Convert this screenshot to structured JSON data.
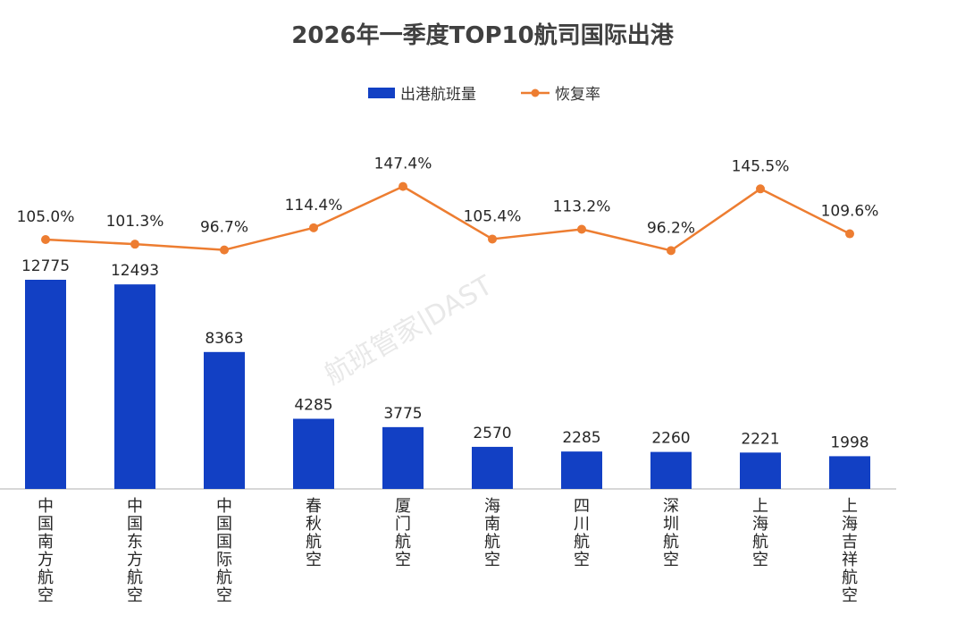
{
  "chart_data": {
    "type": "bar",
    "title": "2026年一季度TOP10航司国际出港",
    "categories": [
      "中国南方航空",
      "中国东方航空",
      "中国国际航空",
      "春秋航空",
      "厦门航空",
      "海南航空",
      "四川航空",
      "深圳航空",
      "上海航空",
      "上海吉祥航空"
    ],
    "series": [
      {
        "name": "出港航班量",
        "kind": "bar",
        "values": [
          12775,
          12493,
          8363,
          4285,
          3775,
          2570,
          2285,
          2260,
          2221,
          1998
        ]
      },
      {
        "name": "恢复率",
        "kind": "line",
        "values": [
          105.0,
          101.3,
          96.7,
          114.4,
          147.4,
          105.4,
          113.2,
          96.2,
          145.5,
          109.6
        ],
        "labels": [
          "105.0%",
          "101.3%",
          "96.7%",
          "114.4%",
          "147.4%",
          "105.4%",
          "113.2%",
          "96.2%",
          "145.5%",
          "109.6%"
        ]
      }
    ],
    "legend_position": "top-center",
    "grid": false,
    "colors": {
      "bar": "#1240c4",
      "line": "#ed7d31",
      "title": "#404040"
    }
  },
  "watermark": "航班管家|DAST"
}
